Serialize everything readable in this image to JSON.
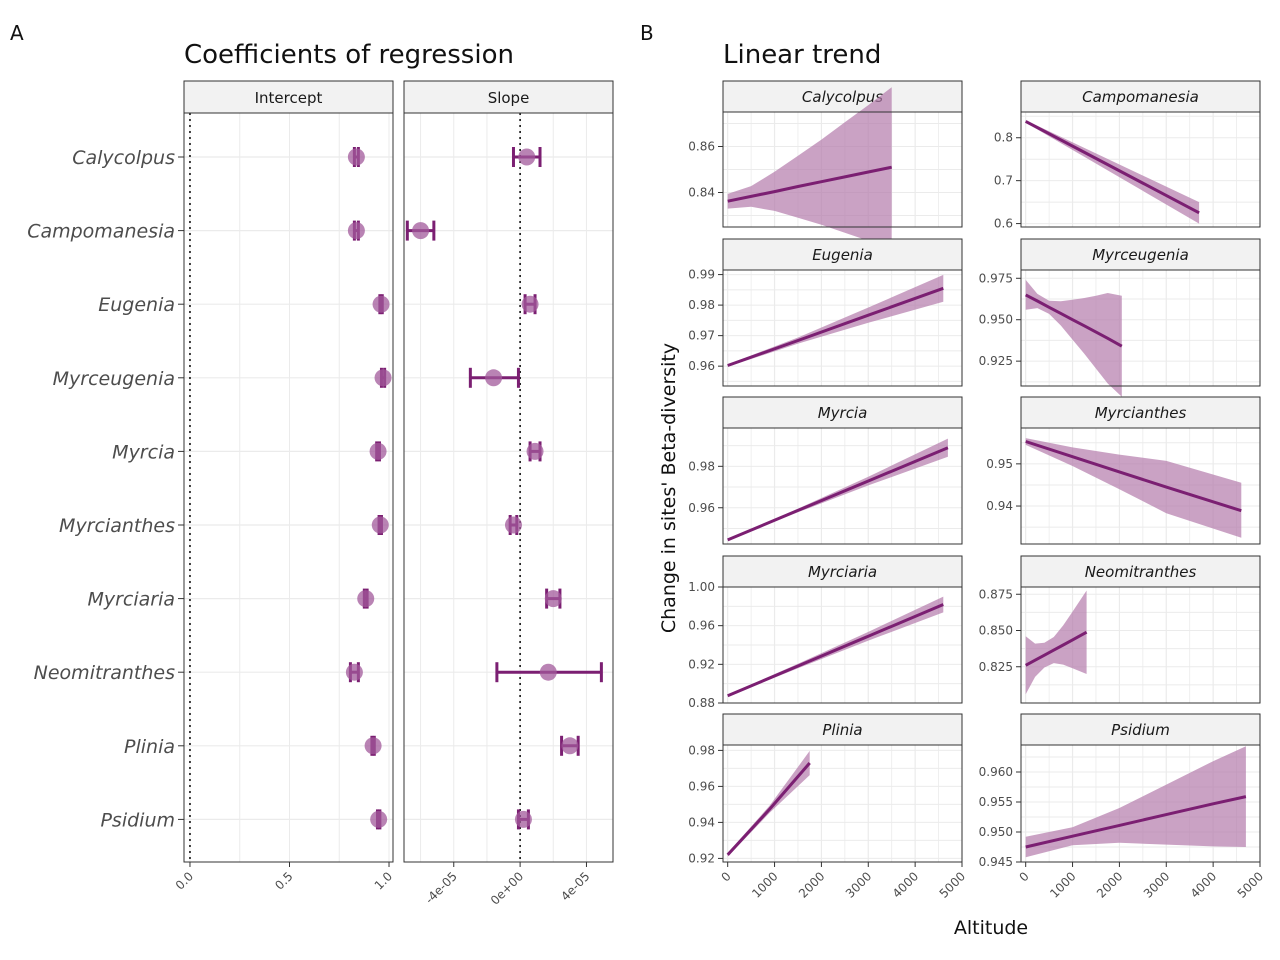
{
  "colors": {
    "accent": "#7b1f72",
    "point_fill": "#a15a9b",
    "ribbon": "#b37aab",
    "grid": "#ebebeb",
    "strip_bg": "#f2f2f2",
    "panel_border": "#333333"
  },
  "panel_a": {
    "tag": "A",
    "title": "Coefficients of regression"
  },
  "panel_b": {
    "tag": "B",
    "title": "Linear trend",
    "ylabel": "Change in sites' Beta-diversity",
    "xlabel": "Altitude"
  },
  "chart_data": [
    {
      "type": "scatter",
      "title": "Coefficients of regression",
      "facets": [
        "Intercept",
        "Slope"
      ],
      "categories": [
        "Calycolpus",
        "Campomanesia",
        "Eugenia",
        "Myrceugenia",
        "Myrcia",
        "Myrcianthes",
        "Myrciaria",
        "Neomitranthes",
        "Plinia",
        "Psidium"
      ],
      "reference_line": 0,
      "panels": [
        {
          "name": "Intercept",
          "xlim": [
            -0.03,
            1.02
          ],
          "xticks": [
            0.0,
            0.5,
            1.0
          ],
          "xtick_labels": [
            "0.0",
            "0.5",
            "1.0"
          ],
          "estimates": [
            0.836,
            0.836,
            0.96,
            0.97,
            0.945,
            0.956,
            0.883,
            0.826,
            0.92,
            0.948
          ],
          "lower": [
            0.826,
            0.826,
            0.954,
            0.962,
            0.938,
            0.95,
            0.876,
            0.806,
            0.914,
            0.942
          ],
          "upper": [
            0.846,
            0.846,
            0.966,
            0.978,
            0.952,
            0.962,
            0.89,
            0.846,
            0.926,
            0.954
          ]
        },
        {
          "name": "Slope",
          "xlim": [
            -7e-05,
            5.6e-05
          ],
          "xticks": [
            -4e-05,
            0,
            4e-05
          ],
          "xtick_labels": [
            "-4e-05",
            "0e+00",
            "4e-05"
          ],
          "estimates": [
            4e-06,
            -6e-05,
            6e-06,
            -1.6e-05,
            9e-06,
            -4e-06,
            2e-05,
            1.7e-05,
            3e-05,
            2e-06
          ],
          "lower": [
            -4e-06,
            -6.8e-05,
            3e-06,
            -3e-05,
            6e-06,
            -6e-06,
            1.6e-05,
            -1.4e-05,
            2.5e-05,
            -1e-06
          ],
          "upper": [
            1.2e-05,
            -5.2e-05,
            9e-06,
            -1e-06,
            1.2e-05,
            -2e-06,
            2.4e-05,
            4.9e-05,
            3.5e-05,
            5e-06
          ]
        }
      ]
    },
    {
      "type": "line",
      "title": "Linear trend",
      "xlabel": "Altitude",
      "ylabel": "Change in sites' Beta-diversity",
      "xlim": [
        -100,
        5000
      ],
      "xticks": [
        0,
        1000,
        2000,
        3000,
        4000,
        5000
      ],
      "facets": [
        {
          "name": "Calycolpus",
          "ylim": [
            0.825,
            0.875
          ],
          "yticks": [
            0.84,
            0.86
          ],
          "ytick_labels": [
            "0.84",
            "0.86"
          ],
          "x": [
            0,
            500,
            1000,
            1500,
            2000,
            2500,
            3000,
            3500
          ],
          "y": [
            0.8362,
            0.8383,
            0.8404,
            0.8426,
            0.8447,
            0.8468,
            0.8489,
            0.851
          ],
          "lo": [
            0.833,
            0.8338,
            0.832,
            0.829,
            0.826,
            0.8225,
            0.819,
            0.8155
          ],
          "hi": [
            0.8394,
            0.8428,
            0.849,
            0.856,
            0.863,
            0.8705,
            0.878,
            0.8858
          ]
        },
        {
          "name": "Campomanesia",
          "ylim": [
            0.592,
            0.86
          ],
          "yticks": [
            0.6,
            0.7,
            0.8
          ],
          "ytick_labels": [
            "0.6",
            "0.7",
            "0.8"
          ],
          "x": [
            0,
            3700
          ],
          "y": [
            0.838,
            0.625
          ],
          "lo": [
            0.835,
            0.6
          ],
          "hi": [
            0.841,
            0.65
          ]
        },
        {
          "name": "Eugenia",
          "ylim": [
            0.9535,
            0.9915
          ],
          "yticks": [
            0.96,
            0.97,
            0.98,
            0.99
          ],
          "ytick_labels": [
            "0.96",
            "0.97",
            "0.98",
            "0.99"
          ],
          "x": [
            0,
            1500,
            3000,
            4600
          ],
          "y": [
            0.9602,
            0.9684,
            0.9767,
            0.9855
          ],
          "lo": [
            0.9598,
            0.9674,
            0.9742,
            0.9811
          ],
          "hi": [
            0.9606,
            0.9694,
            0.9792,
            0.9899
          ]
        },
        {
          "name": "Myrceugenia",
          "ylim": [
            0.91,
            0.98
          ],
          "yticks": [
            0.925,
            0.95,
            0.975
          ],
          "ytick_labels": [
            "0.925",
            "0.950",
            "0.975"
          ],
          "x": [
            0,
            250,
            500,
            750,
            1000,
            1250,
            1500,
            1750,
            2050
          ],
          "y": [
            0.965,
            0.9613,
            0.9575,
            0.9538,
            0.95,
            0.9463,
            0.9425,
            0.9388,
            0.934
          ],
          "lo": [
            0.956,
            0.957,
            0.9535,
            0.9465,
            0.938,
            0.9295,
            0.9205,
            0.9115,
            0.9035
          ],
          "hi": [
            0.974,
            0.9656,
            0.9615,
            0.9611,
            0.962,
            0.9631,
            0.9645,
            0.9661,
            0.9645
          ]
        },
        {
          "name": "Myrcia",
          "ylim": [
            0.9425,
            0.9985
          ],
          "yticks": [
            0.96,
            0.98
          ],
          "ytick_labels": [
            "0.96",
            "0.98"
          ],
          "x": [
            0,
            1500,
            3000,
            4700
          ],
          "y": [
            0.9445,
            0.9587,
            0.9729,
            0.989
          ],
          "lo": [
            0.9442,
            0.9578,
            0.9708,
            0.9846
          ],
          "hi": [
            0.9448,
            0.9596,
            0.975,
            0.9934
          ]
        },
        {
          "name": "Myrcianthes",
          "ylim": [
            0.931,
            0.9585
          ],
          "yticks": [
            0.94,
            0.95
          ],
          "ytick_labels": [
            "0.94",
            "0.95"
          ],
          "x": [
            0,
            1000,
            2000,
            3000,
            4600
          ],
          "y": [
            0.9553,
            0.9517,
            0.9481,
            0.9445,
            0.9389
          ],
          "lo": [
            0.9545,
            0.9495,
            0.944,
            0.9383,
            0.9325
          ],
          "hi": [
            0.9561,
            0.9539,
            0.9522,
            0.9507,
            0.9455
          ]
        },
        {
          "name": "Myrciaria",
          "ylim": [
            0.88,
            1.0
          ],
          "yticks": [
            0.88,
            0.92,
            0.96,
            1.0
          ],
          "ytick_labels": [
            "0.88",
            "0.92",
            "0.96",
            "1.00"
          ],
          "x": [
            0,
            1500,
            3000,
            4600
          ],
          "y": [
            0.8875,
            0.9183,
            0.9491,
            0.9819
          ],
          "lo": [
            0.8865,
            0.916,
            0.9446,
            0.9737
          ],
          "hi": [
            0.8885,
            0.9206,
            0.9536,
            0.9901
          ]
        },
        {
          "name": "Neomitranthes",
          "ylim": [
            0.8,
            0.88
          ],
          "yticks": [
            0.825,
            0.85,
            0.875
          ],
          "ytick_labels": [
            "0.825",
            "0.850",
            "0.875"
          ],
          "x": [
            0,
            200,
            400,
            600,
            800,
            1000,
            1300
          ],
          "y": [
            0.826,
            0.8295,
            0.833,
            0.8365,
            0.84,
            0.8435,
            0.8488
          ],
          "lo": [
            0.806,
            0.818,
            0.8245,
            0.8275,
            0.8265,
            0.824,
            0.82
          ],
          "hi": [
            0.846,
            0.841,
            0.8415,
            0.8455,
            0.8535,
            0.863,
            0.8776
          ]
        },
        {
          "name": "Plinia",
          "ylim": [
            0.918,
            0.983
          ],
          "yticks": [
            0.92,
            0.94,
            0.96,
            0.98
          ],
          "ytick_labels": [
            "0.92",
            "0.94",
            "0.96",
            "0.98"
          ],
          "x": [
            0,
            900,
            1750
          ],
          "y": [
            0.922,
            0.9475,
            0.973
          ],
          "lo": [
            0.921,
            0.9455,
            0.9663
          ],
          "hi": [
            0.923,
            0.9495,
            0.9797
          ]
        },
        {
          "name": "Psidium",
          "ylim": [
            0.945,
            0.9645
          ],
          "yticks": [
            0.945,
            0.95,
            0.955,
            0.96
          ],
          "ytick_labels": [
            "0.945",
            "0.950",
            "0.955",
            "0.960"
          ],
          "x": [
            0,
            1000,
            2000,
            3000,
            4000,
            4700
          ],
          "y": [
            0.9475,
            0.9493,
            0.9511,
            0.9529,
            0.9547,
            0.9559
          ],
          "lo": [
            0.9458,
            0.9478,
            0.9482,
            0.9479,
            0.9476,
            0.9475
          ],
          "hi": [
            0.9492,
            0.9508,
            0.954,
            0.9579,
            0.9618,
            0.9643
          ]
        }
      ]
    }
  ]
}
